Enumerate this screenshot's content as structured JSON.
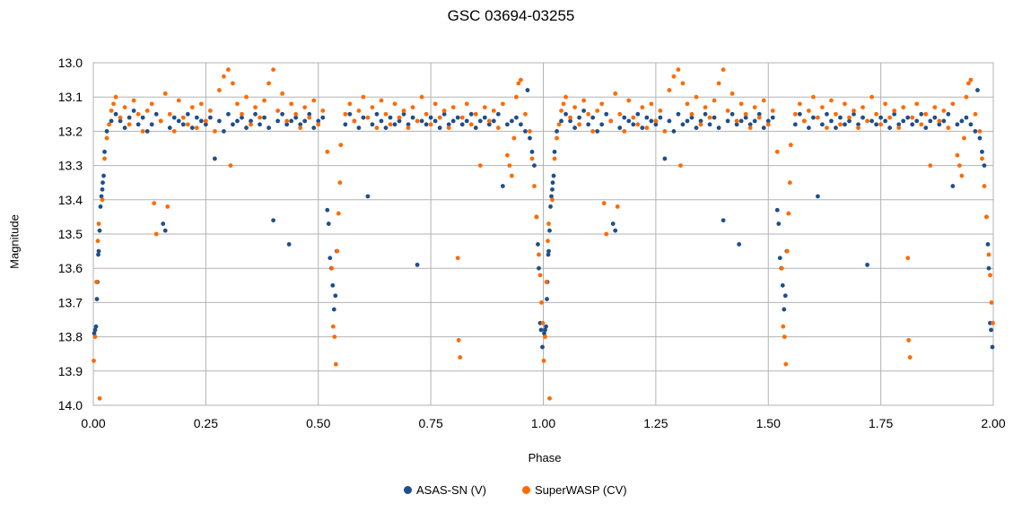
{
  "chart_data": {
    "type": "scatter",
    "title": "GSC 03694-03255",
    "xlabel": "Phase",
    "ylabel": "Magnitude",
    "xlim": [
      0.0,
      2.0
    ],
    "ylim": [
      13.0,
      14.0
    ],
    "y_inverted": true,
    "grid": true,
    "legend_position": "bottom",
    "x_ticks": [
      "0.00",
      "0.25",
      "0.50",
      "0.75",
      "1.00",
      "1.25",
      "1.50",
      "1.75",
      "2.00"
    ],
    "y_ticks": [
      "13.0",
      "13.1",
      "13.2",
      "13.3",
      "13.4",
      "13.5",
      "13.6",
      "13.7",
      "13.8",
      "13.9",
      "14.0"
    ],
    "series": [
      {
        "name": "ASAS-SN (V)",
        "color": "#1f4e8c",
        "points": [
          [
            0.002,
            13.79
          ],
          [
            0.004,
            13.78
          ],
          [
            0.006,
            13.77
          ],
          [
            0.008,
            13.69
          ],
          [
            0.009,
            13.64
          ],
          [
            0.011,
            13.56
          ],
          [
            0.012,
            13.55
          ],
          [
            0.014,
            13.49
          ],
          [
            0.016,
            13.42
          ],
          [
            0.018,
            13.39
          ],
          [
            0.02,
            13.37
          ],
          [
            0.021,
            13.35
          ],
          [
            0.023,
            13.33
          ],
          [
            0.025,
            13.26
          ],
          [
            0.03,
            13.2
          ],
          [
            0.04,
            13.17
          ],
          [
            0.05,
            13.15
          ],
          [
            0.06,
            13.17
          ],
          [
            0.07,
            13.19
          ],
          [
            0.08,
            13.16
          ],
          [
            0.09,
            13.14
          ],
          [
            0.1,
            13.18
          ],
          [
            0.11,
            13.16
          ],
          [
            0.12,
            13.2
          ],
          [
            0.13,
            13.18
          ],
          [
            0.14,
            13.15
          ],
          [
            0.15,
            13.17
          ],
          [
            0.155,
            13.47
          ],
          [
            0.16,
            13.49
          ],
          [
            0.17,
            13.19
          ],
          [
            0.18,
            13.16
          ],
          [
            0.19,
            13.17
          ],
          [
            0.2,
            13.18
          ],
          [
            0.21,
            13.15
          ],
          [
            0.22,
            13.19
          ],
          [
            0.23,
            13.16
          ],
          [
            0.24,
            13.17
          ],
          [
            0.25,
            13.18
          ],
          [
            0.26,
            13.16
          ],
          [
            0.27,
            13.28
          ],
          [
            0.28,
            13.17
          ],
          [
            0.29,
            13.2
          ],
          [
            0.3,
            13.15
          ],
          [
            0.31,
            13.18
          ],
          [
            0.32,
            13.17
          ],
          [
            0.33,
            13.16
          ],
          [
            0.34,
            13.19
          ],
          [
            0.35,
            13.17
          ],
          [
            0.36,
            13.15
          ],
          [
            0.37,
            13.18
          ],
          [
            0.38,
            13.16
          ],
          [
            0.39,
            13.19
          ],
          [
            0.4,
            13.46
          ],
          [
            0.41,
            13.17
          ],
          [
            0.42,
            13.15
          ],
          [
            0.43,
            13.18
          ],
          [
            0.435,
            13.53
          ],
          [
            0.44,
            13.17
          ],
          [
            0.45,
            13.16
          ],
          [
            0.46,
            13.18
          ],
          [
            0.47,
            13.17
          ],
          [
            0.48,
            13.15
          ],
          [
            0.49,
            13.19
          ],
          [
            0.5,
            13.17
          ],
          [
            0.51,
            13.16
          ],
          [
            0.52,
            13.43
          ],
          [
            0.523,
            13.47
          ],
          [
            0.526,
            13.57
          ],
          [
            0.529,
            13.6
          ],
          [
            0.532,
            13.65
          ],
          [
            0.535,
            13.72
          ],
          [
            0.538,
            13.68
          ],
          [
            0.541,
            13.55
          ],
          [
            0.56,
            13.18
          ],
          [
            0.57,
            13.15
          ],
          [
            0.58,
            13.17
          ],
          [
            0.59,
            13.19
          ],
          [
            0.6,
            13.16
          ],
          [
            0.61,
            13.39
          ],
          [
            0.62,
            13.18
          ],
          [
            0.63,
            13.15
          ],
          [
            0.64,
            13.17
          ],
          [
            0.65,
            13.19
          ],
          [
            0.66,
            13.16
          ],
          [
            0.67,
            13.18
          ],
          [
            0.68,
            13.17
          ],
          [
            0.69,
            13.15
          ],
          [
            0.7,
            13.18
          ],
          [
            0.71,
            13.16
          ],
          [
            0.72,
            13.59
          ],
          [
            0.73,
            13.17
          ],
          [
            0.74,
            13.18
          ],
          [
            0.75,
            13.16
          ],
          [
            0.76,
            13.17
          ],
          [
            0.77,
            13.19
          ],
          [
            0.78,
            13.15
          ],
          [
            0.79,
            13.18
          ],
          [
            0.8,
            13.17
          ],
          [
            0.81,
            13.16
          ],
          [
            0.82,
            13.18
          ],
          [
            0.83,
            13.17
          ],
          [
            0.84,
            13.15
          ],
          [
            0.85,
            13.19
          ],
          [
            0.86,
            13.17
          ],
          [
            0.87,
            13.16
          ],
          [
            0.88,
            13.18
          ],
          [
            0.89,
            13.17
          ],
          [
            0.9,
            13.15
          ],
          [
            0.91,
            13.36
          ],
          [
            0.92,
            13.18
          ],
          [
            0.93,
            13.17
          ],
          [
            0.94,
            13.16
          ],
          [
            0.95,
            13.18
          ],
          [
            0.96,
            13.2
          ],
          [
            0.965,
            13.08
          ],
          [
            0.97,
            13.22
          ],
          [
            0.975,
            13.26
          ],
          [
            0.98,
            13.3
          ],
          [
            0.985,
            13.45
          ],
          [
            0.988,
            13.53
          ],
          [
            0.99,
            13.6
          ],
          [
            0.993,
            13.76
          ],
          [
            0.995,
            13.78
          ],
          [
            0.998,
            13.83
          ]
        ]
      },
      {
        "name": "SuperWASP (CV)",
        "color": "#ff6a00",
        "points": [
          [
            0.001,
            13.87
          ],
          [
            0.004,
            13.8
          ],
          [
            0.007,
            13.64
          ],
          [
            0.01,
            13.52
          ],
          [
            0.012,
            13.47
          ],
          [
            0.014,
            13.98
          ],
          [
            0.02,
            13.4
          ],
          [
            0.025,
            13.28
          ],
          [
            0.03,
            13.22
          ],
          [
            0.035,
            13.18
          ],
          [
            0.04,
            13.14
          ],
          [
            0.045,
            13.12
          ],
          [
            0.05,
            13.1
          ],
          [
            0.06,
            13.16
          ],
          [
            0.07,
            13.13
          ],
          [
            0.08,
            13.18
          ],
          [
            0.09,
            13.11
          ],
          [
            0.1,
            13.15
          ],
          [
            0.11,
            13.2
          ],
          [
            0.12,
            13.14
          ],
          [
            0.13,
            13.12
          ],
          [
            0.135,
            13.41
          ],
          [
            0.14,
            13.5
          ],
          [
            0.15,
            13.17
          ],
          [
            0.16,
            13.09
          ],
          [
            0.165,
            13.42
          ],
          [
            0.17,
            13.15
          ],
          [
            0.18,
            13.2
          ],
          [
            0.19,
            13.11
          ],
          [
            0.2,
            13.16
          ],
          [
            0.21,
            13.18
          ],
          [
            0.22,
            13.13
          ],
          [
            0.23,
            13.19
          ],
          [
            0.24,
            13.12
          ],
          [
            0.25,
            13.17
          ],
          [
            0.26,
            13.14
          ],
          [
            0.27,
            13.2
          ],
          [
            0.28,
            13.08
          ],
          [
            0.29,
            13.04
          ],
          [
            0.3,
            13.02
          ],
          [
            0.305,
            13.3
          ],
          [
            0.31,
            13.06
          ],
          [
            0.32,
            13.12
          ],
          [
            0.33,
            13.15
          ],
          [
            0.34,
            13.1
          ],
          [
            0.35,
            13.18
          ],
          [
            0.36,
            13.13
          ],
          [
            0.37,
            13.16
          ],
          [
            0.38,
            13.11
          ],
          [
            0.39,
            13.06
          ],
          [
            0.4,
            13.02
          ],
          [
            0.41,
            13.14
          ],
          [
            0.42,
            13.09
          ],
          [
            0.43,
            13.17
          ],
          [
            0.44,
            13.12
          ],
          [
            0.45,
            13.15
          ],
          [
            0.46,
            13.19
          ],
          [
            0.47,
            13.13
          ],
          [
            0.48,
            13.16
          ],
          [
            0.49,
            13.11
          ],
          [
            0.5,
            13.18
          ],
          [
            0.51,
            13.14
          ],
          [
            0.52,
            13.26
          ],
          [
            0.53,
            13.6
          ],
          [
            0.533,
            13.77
          ],
          [
            0.536,
            13.8
          ],
          [
            0.539,
            13.88
          ],
          [
            0.542,
            13.55
          ],
          [
            0.545,
            13.44
          ],
          [
            0.548,
            13.35
          ],
          [
            0.55,
            13.24
          ],
          [
            0.56,
            13.15
          ],
          [
            0.57,
            13.12
          ],
          [
            0.58,
            13.17
          ],
          [
            0.59,
            13.14
          ],
          [
            0.6,
            13.1
          ],
          [
            0.61,
            13.16
          ],
          [
            0.62,
            13.13
          ],
          [
            0.63,
            13.19
          ],
          [
            0.64,
            13.11
          ],
          [
            0.65,
            13.15
          ],
          [
            0.66,
            13.18
          ],
          [
            0.67,
            13.12
          ],
          [
            0.68,
            13.16
          ],
          [
            0.69,
            13.14
          ],
          [
            0.7,
            13.19
          ],
          [
            0.71,
            13.13
          ],
          [
            0.72,
            13.17
          ],
          [
            0.73,
            13.1
          ],
          [
            0.74,
            13.15
          ],
          [
            0.75,
            13.18
          ],
          [
            0.76,
            13.12
          ],
          [
            0.77,
            13.16
          ],
          [
            0.78,
            13.14
          ],
          [
            0.79,
            13.19
          ],
          [
            0.8,
            13.13
          ],
          [
            0.81,
            13.57
          ],
          [
            0.812,
            13.81
          ],
          [
            0.815,
            13.86
          ],
          [
            0.82,
            13.16
          ],
          [
            0.83,
            13.12
          ],
          [
            0.84,
            13.18
          ],
          [
            0.85,
            13.15
          ],
          [
            0.86,
            13.3
          ],
          [
            0.87,
            13.13
          ],
          [
            0.88,
            13.17
          ],
          [
            0.89,
            13.14
          ],
          [
            0.9,
            13.19
          ],
          [
            0.91,
            13.12
          ],
          [
            0.92,
            13.27
          ],
          [
            0.925,
            13.3
          ],
          [
            0.93,
            13.33
          ],
          [
            0.935,
            13.22
          ],
          [
            0.94,
            13.1
          ],
          [
            0.945,
            13.06
          ],
          [
            0.95,
            13.05
          ],
          [
            0.96,
            13.15
          ],
          [
            0.97,
            13.2
          ],
          [
            0.975,
            13.28
          ],
          [
            0.98,
            13.36
          ],
          [
            0.985,
            13.45
          ],
          [
            0.99,
            13.56
          ],
          [
            0.993,
            13.62
          ],
          [
            0.996,
            13.7
          ],
          [
            0.999,
            13.76
          ]
        ]
      }
    ]
  }
}
